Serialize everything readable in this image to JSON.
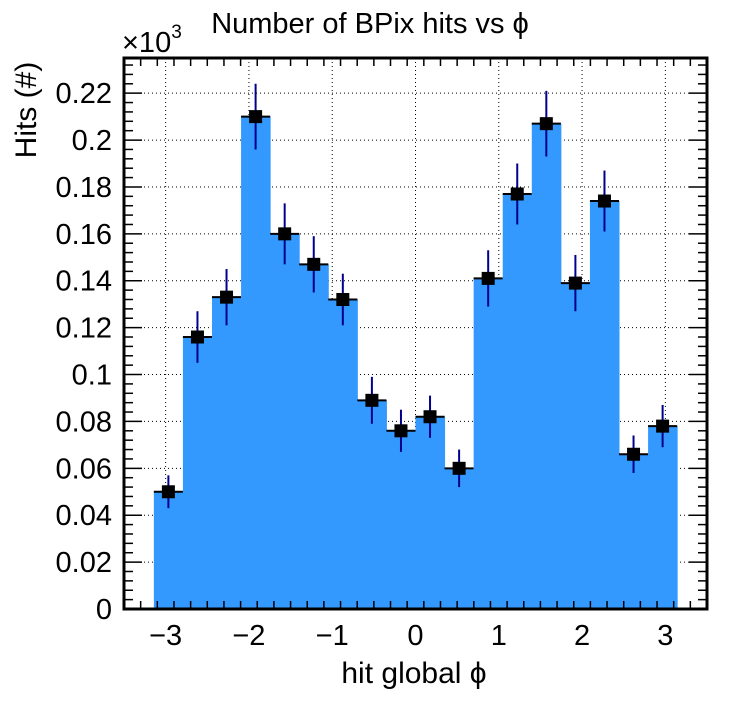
{
  "chart_data": {
    "type": "bar",
    "title": "Number of BPix hits vs ϕ",
    "xlabel": "hit global ϕ",
    "ylabel": "Hits (#)",
    "y_exponent_label": "×10",
    "y_exponent_power": "3",
    "xlim": [
      -3.5,
      3.5
    ],
    "ylim": [
      0,
      0.235
    ],
    "x_ticks": [
      {
        "value": -3,
        "label": "−3"
      },
      {
        "value": -2,
        "label": "−2"
      },
      {
        "value": -1,
        "label": "−1"
      },
      {
        "value": 0,
        "label": "0"
      },
      {
        "value": 1,
        "label": "1"
      },
      {
        "value": 2,
        "label": "2"
      },
      {
        "value": 3,
        "label": "3"
      }
    ],
    "y_ticks": [
      {
        "value": 0,
        "label": "0"
      },
      {
        "value": 0.02,
        "label": "0.02"
      },
      {
        "value": 0.04,
        "label": "0.04"
      },
      {
        "value": 0.06,
        "label": "0.06"
      },
      {
        "value": 0.08,
        "label": "0.08"
      },
      {
        "value": 0.1,
        "label": "0.1"
      },
      {
        "value": 0.12,
        "label": "0.12"
      },
      {
        "value": 0.14,
        "label": "0.14"
      },
      {
        "value": 0.16,
        "label": "0.16"
      },
      {
        "value": 0.18,
        "label": "0.18"
      },
      {
        "value": 0.2,
        "label": "0.2"
      },
      {
        "value": 0.22,
        "label": "0.22"
      }
    ],
    "grid": true,
    "bin_low": -3.14159,
    "bin_high": 3.14159,
    "values": [
      0.05,
      0.116,
      0.133,
      0.21,
      0.16,
      0.147,
      0.132,
      0.089,
      0.076,
      0.082,
      0.06,
      0.141,
      0.177,
      0.207,
      0.139,
      0.174,
      0.066,
      0.078
    ],
    "errors": [
      0.007,
      0.011,
      0.012,
      0.014,
      0.013,
      0.012,
      0.011,
      0.01,
      0.009,
      0.009,
      0.008,
      0.012,
      0.013,
      0.014,
      0.012,
      0.013,
      0.008,
      0.009
    ],
    "colors": {
      "fill": "#3399ff",
      "edge": "#000000",
      "marker": "#000000",
      "error_bar": "#00008b",
      "grid": "#000000"
    }
  }
}
